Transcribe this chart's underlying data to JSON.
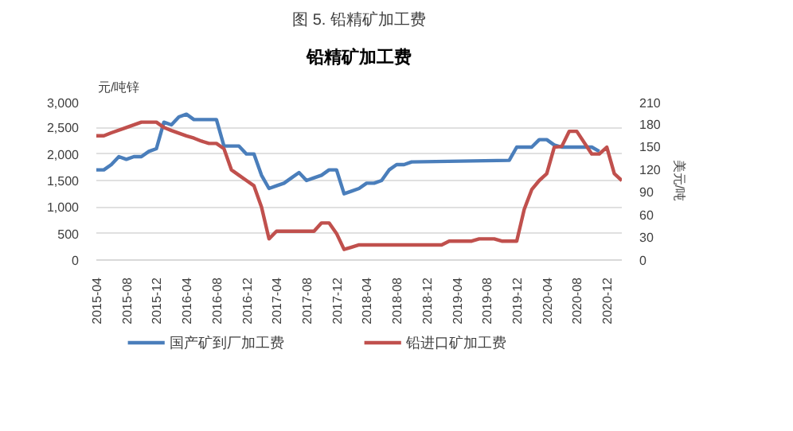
{
  "chart_data": {
    "type": "line",
    "title": "图 5. 铅精矿加工费",
    "subtitle": "铅精矿加工费",
    "ylabel": "元/吨锌",
    "y2label": "美元/吨",
    "xlim": [
      "2015-04",
      "2021-02"
    ],
    "xticks": [
      "2015-04",
      "2015-08",
      "2015-12",
      "2016-04",
      "2016-08",
      "2016-12",
      "2017-04",
      "2017-08",
      "2017-12",
      "2018-04",
      "2018-08",
      "2018-12",
      "2019-04",
      "2019-08",
      "2019-12",
      "2020-04",
      "2020-08",
      "2020-12"
    ],
    "ylim": [
      0,
      3000
    ],
    "yticks": [
      0,
      500,
      {
        "value": 1000,
        "label": "1,000"
      },
      {
        "value": 1500,
        "label": "1,500"
      },
      {
        "value": 2000,
        "label": "2,000"
      },
      {
        "value": 2500,
        "label": "2,500"
      },
      {
        "value": 3000,
        "label": "3,000"
      }
    ],
    "y2lim": [
      0,
      210
    ],
    "y2ticks": [
      0,
      30,
      60,
      90,
      120,
      150,
      180,
      210
    ],
    "grid": "y",
    "legend": "bottom",
    "line_style": "solid",
    "series": [
      {
        "name": "国产矿到厂加工费",
        "color": "#4a7ebb",
        "x": [
          "2015-04",
          "2015-05",
          "2015-06",
          "2015-07",
          "2015-08",
          "2015-09",
          "2015-10",
          "2015-11",
          "2015-12",
          "2016-01",
          "2016-02",
          "2016-03",
          "2016-04",
          "2016-05",
          "2016-06",
          "2016-07",
          "2016-08",
          "2016-09",
          "2016-11",
          "2016-12",
          "2017-01",
          "2017-02",
          "2017-03",
          "2017-04",
          "2017-05",
          "2017-06",
          "2017-07",
          "2017-08",
          "2017-09",
          "2017-10",
          "2017-11",
          "2017-12",
          "2018-01",
          "2018-02",
          "2018-03",
          "2018-04",
          "2018-05",
          "2018-06",
          "2018-07",
          "2018-08",
          "2018-09",
          "2018-10",
          "2019-11",
          "2019-12",
          "2020-02",
          "2020-03",
          "2020-04",
          "2020-05",
          "2020-06",
          "2020-10",
          "2020-11"
        ],
        "values": [
          1700,
          1700,
          1800,
          1950,
          1900,
          1950,
          1950,
          2050,
          2100,
          2600,
          2550,
          2700,
          2750,
          2650,
          2650,
          2650,
          2650,
          2150,
          2150,
          2000,
          2000,
          1600,
          1350,
          1400,
          1450,
          1550,
          1650,
          1500,
          1550,
          1600,
          1700,
          1700,
          1250,
          1300,
          1350,
          1450,
          1450,
          1500,
          1700,
          1800,
          1800,
          1850,
          1880,
          2130,
          2130,
          2270,
          2270,
          2170,
          2130,
          2130,
          2050
        ]
      },
      {
        "name": "铅进口矿加工费",
        "color": "#c0504d",
        "axis": "y2",
        "x": [
          "2015-04",
          "2015-05",
          "2015-06",
          "2015-08",
          "2015-10",
          "2015-12",
          "2016-01",
          "2016-02",
          "2016-04",
          "2016-05",
          "2016-06",
          "2016-07",
          "2016-08",
          "2016-09",
          "2016-10",
          "2016-11",
          "2016-12",
          "2017-01",
          "2017-02",
          "2017-03",
          "2017-04",
          "2017-09",
          "2017-10",
          "2017-11",
          "2017-12",
          "2018-01",
          "2018-02",
          "2018-03",
          "2018-04",
          "2019-02",
          "2019-03",
          "2019-06",
          "2019-07",
          "2019-09",
          "2019-10",
          "2019-12",
          "2020-01",
          "2020-02",
          "2020-03",
          "2020-04",
          "2020-05",
          "2020-06",
          "2020-07",
          "2020-08",
          "2020-10",
          "2020-11",
          "2020-12",
          "2021-01",
          "2021-02"
        ],
        "values": [
          164,
          164,
          168,
          175,
          182,
          182,
          175,
          171,
          164,
          161,
          157,
          154,
          154,
          147,
          119,
          112,
          105,
          98,
          70,
          28,
          38,
          38,
          49,
          49,
          35,
          14,
          17,
          20,
          20,
          20,
          25,
          25,
          28,
          28,
          25,
          25,
          67,
          93,
          105,
          114,
          149,
          150,
          170,
          170,
          140,
          140,
          149,
          114,
          105
        ]
      }
    ]
  }
}
